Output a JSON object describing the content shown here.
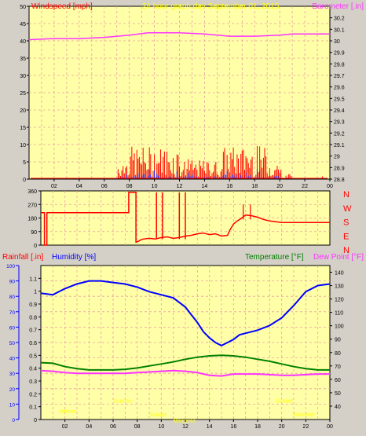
{
  "header": {
    "left_label": "Windspeed [mph]",
    "center_label": "24 hour graph day   September 01, 2015",
    "right_label": "Barometer [.in]"
  },
  "colors": {
    "background": "#d4d0c8",
    "plot_bg": "#ffffa8",
    "grid": "#e8a0a0",
    "wind_gust": "#ff0000",
    "wind_avg": "#2222ff",
    "barometer": "#ff33ff",
    "direction": "#ff0000",
    "humidity": "#0000ff",
    "temperature": "#008000",
    "dewpoint": "#ff33ff",
    "title_yellow": "#ffff00"
  },
  "chart_data": [
    {
      "id": "wind",
      "type": "bar",
      "x_ticks": [
        "02",
        "04",
        "06",
        "08",
        "10",
        "12",
        "14",
        "16",
        "18",
        "20",
        "22",
        "00"
      ],
      "xlim": [
        0,
        24
      ],
      "left_axis": {
        "label": "Windspeed [mph]",
        "ylim": [
          0,
          50
        ],
        "ticks": [
          0,
          5,
          10,
          15,
          20,
          25,
          30,
          35,
          40,
          45,
          50
        ]
      },
      "right_axis": {
        "label": "Barometer [.in]",
        "ylim": [
          28.8,
          30.3
        ],
        "ticks": [
          "28.8",
          "28.9",
          "29",
          "29.1",
          "29.2",
          "29.3",
          "29.4",
          "29.5",
          "29.6",
          "29.7",
          "29.8",
          "29.9",
          "30",
          "30.1",
          "30.2"
        ]
      },
      "series": [
        {
          "name": "Barometer",
          "type": "line",
          "axis": "right",
          "x": [
            0,
            2,
            4,
            6,
            8,
            9.5,
            11,
            12,
            14,
            16,
            18,
            20,
            21,
            22,
            24
          ],
          "y": [
            30.01,
            30.02,
            30.02,
            30.03,
            30.05,
            30.07,
            30.07,
            30.07,
            30.06,
            30.04,
            30.04,
            30.05,
            30.06,
            30.06,
            30.06
          ]
        }
      ]
    },
    {
      "id": "wind_direction",
      "type": "line",
      "xlim": [
        0,
        24
      ],
      "left_ticks": [
        "0",
        "90",
        "180",
        "270",
        "360"
      ],
      "ylim": [
        0,
        360
      ],
      "right_labels": [
        "N",
        "W",
        "S",
        "E",
        "N"
      ],
      "series": [
        {
          "name": "Wind direction",
          "x": [
            0,
            0.3,
            0.3,
            0.5,
            0.5,
            7.3,
            7.3,
            7.9,
            7.9,
            8.1,
            8.3,
            8.5,
            9,
            9.5,
            10,
            10.5,
            11,
            11.5,
            12,
            12.5,
            13,
            13.5,
            14,
            14.5,
            15,
            15.5,
            15.7,
            16,
            16.3,
            16.6,
            17,
            17.5,
            18,
            18.5,
            19,
            20,
            21,
            22,
            23,
            24
          ],
          "y": [
            215,
            215,
            0,
            0,
            215,
            215,
            350,
            350,
            20,
            25,
            35,
            40,
            45,
            40,
            50,
            55,
            45,
            50,
            60,
            65,
            75,
            80,
            70,
            75,
            60,
            65,
            100,
            140,
            160,
            175,
            200,
            195,
            185,
            170,
            160,
            150,
            150,
            150,
            150,
            150
          ]
        }
      ]
    },
    {
      "id": "humidity_temp",
      "type": "line",
      "xlim": [
        0,
        24
      ],
      "left_outer_axis": {
        "label": "Rainfall [.in]",
        "ylim": [
          0,
          100
        ],
        "ticks": [
          0,
          10,
          20,
          30,
          40,
          50,
          60,
          70,
          80,
          90,
          100
        ]
      },
      "left_inner_axis": {
        "label": "Humidity [%]",
        "ylim": [
          0,
          1.2
        ],
        "ticks": [
          "0",
          "0.1",
          "0.2",
          "0.3",
          "0.4",
          "0.5",
          "0.6",
          "0.7",
          "0.8",
          "0.9",
          "1",
          "1.1"
        ]
      },
      "right_axis": {
        "label": "Temperature [°F]",
        "ylim": [
          30,
          145
        ],
        "ticks": [
          40,
          50,
          60,
          70,
          80,
          90,
          100,
          110,
          120,
          130,
          140
        ]
      },
      "right_label_extra": "Dew Point [°F]",
      "x_ticks": [
        "02",
        "04",
        "06",
        "08",
        "10",
        "12",
        "14",
        "16",
        "18",
        "20",
        "22",
        "00"
      ],
      "series": [
        {
          "name": "Humidity [%]",
          "axis": "left_outer",
          "x": [
            0,
            1,
            2,
            3,
            4,
            5,
            6,
            7,
            8,
            9,
            10,
            11,
            12,
            12.5,
            13,
            13.5,
            14,
            14.5,
            15,
            15.5,
            16,
            16.5,
            17,
            18,
            19,
            20,
            21,
            22,
            23,
            24
          ],
          "y": [
            82,
            81,
            85,
            88,
            90,
            90,
            89,
            88,
            86,
            83,
            81,
            79,
            73,
            68,
            63,
            57,
            53,
            50,
            48,
            50,
            52,
            55,
            56,
            58,
            61,
            66,
            74,
            83,
            87,
            88
          ]
        },
        {
          "name": "Temperature [°F]",
          "axis": "right",
          "x": [
            0,
            1,
            2,
            3,
            4,
            5,
            6,
            7,
            8,
            9,
            10,
            11,
            12,
            13,
            14,
            15,
            16,
            17,
            18,
            19,
            20,
            21,
            22,
            23,
            24
          ],
          "y": [
            72.5,
            72,
            69.5,
            68,
            67,
            67,
            67,
            67.5,
            68.5,
            70,
            71.5,
            73,
            75,
            76.5,
            77.5,
            78,
            77.5,
            76.5,
            75,
            73.5,
            71.5,
            69.5,
            68,
            67,
            67
          ]
        },
        {
          "name": "Dew Point [°F]",
          "axis": "right",
          "x": [
            0,
            1,
            2,
            3,
            4,
            5,
            6,
            7,
            8,
            9,
            10,
            11,
            12,
            13,
            14,
            15,
            16,
            17,
            18,
            19,
            20,
            21,
            22,
            23,
            24
          ],
          "y": [
            66.5,
            66,
            65,
            64.5,
            64.5,
            64.5,
            64.5,
            64.5,
            65,
            65.5,
            66,
            66.5,
            66,
            65,
            63,
            62.5,
            64,
            64,
            64,
            63.5,
            63,
            63,
            63.5,
            64,
            64
          ]
        }
      ],
      "annotations": [
        {
          "text": "Haloes",
          "x": 1.5,
          "y": 4
        },
        {
          "text": "Sunrise",
          "x": 6.0,
          "y": 11
        },
        {
          "text": "Sunset",
          "x": 9.0,
          "y": 2
        },
        {
          "text": "Moonrise",
          "x": 11.0,
          "y": -2
        },
        {
          "text": "Sunset",
          "x": 19.5,
          "y": 11
        },
        {
          "text": "Moonset",
          "x": 21.0,
          "y": 2
        }
      ]
    }
  ],
  "panel2_labels": {
    "rain_label": "Rainfall [.in]",
    "hum_label": "Humidity [%]",
    "temp_label": "Temperature [°F]",
    "dew_label": "Dew Point [°F]"
  }
}
